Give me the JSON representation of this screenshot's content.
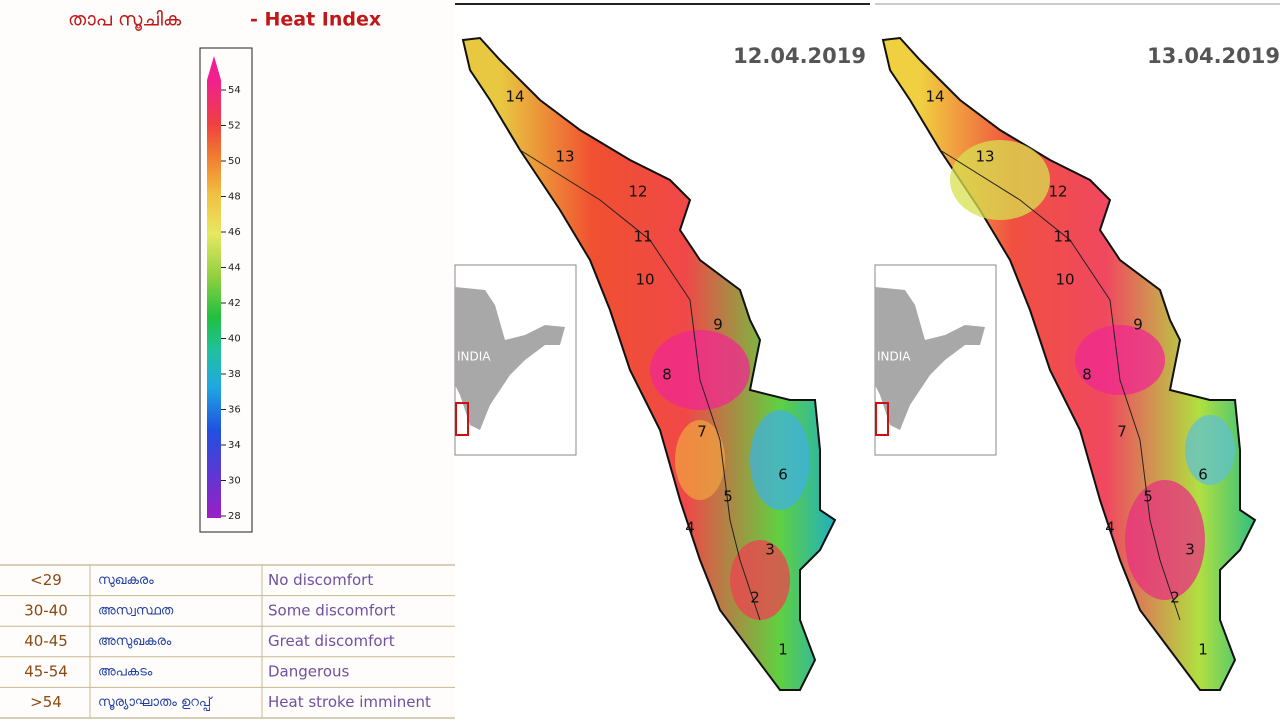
{
  "header": {
    "title_ml": "താപ സൂചിക",
    "title_en": "- Heat Index"
  },
  "colorbar": {
    "ticks": [
      "54",
      "52",
      "50",
      "48",
      "46",
      "44",
      "42",
      "40",
      "38",
      "36",
      "34",
      "30",
      "28"
    ]
  },
  "table": {
    "rows": [
      [
        "<29",
        "സുഖകരം",
        "No discomfort"
      ],
      [
        "30-40",
        "അസ്വസ്ഥത",
        "Some discomfort"
      ],
      [
        "40-45",
        "അസുഖകരം",
        "Great discomfort"
      ],
      [
        "45-54",
        "അപകടം",
        "Dangerous"
      ],
      [
        ">54",
        "സൂര്യാഘാതം ഉറപ്പ്",
        "Heat stroke imminent"
      ]
    ]
  },
  "maps": [
    {
      "date": "12.04.2019",
      "inset_label": "INDIA",
      "districts": [
        "1",
        "2",
        "3",
        "4",
        "5",
        "6",
        "7",
        "8",
        "9",
        "10",
        "11",
        "12",
        "13",
        "14"
      ]
    },
    {
      "date": "13.04.2019",
      "inset_label": "INDIA",
      "districts": [
        "1",
        "2",
        "3",
        "4",
        "5",
        "6",
        "7",
        "8",
        "9",
        "10",
        "11",
        "12",
        "13",
        "14"
      ]
    }
  ]
}
